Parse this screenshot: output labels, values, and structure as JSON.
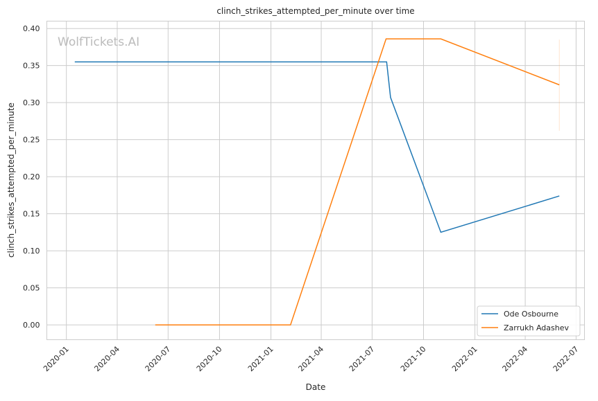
{
  "chart_data": {
    "type": "line",
    "title": "clinch_strikes_attempted_per_minute over time",
    "xlabel": "Date",
    "ylabel": "clinch_strikes_attempted_per_minute",
    "watermark": "WolfTickets.AI",
    "xlim": [
      "2019-11-27",
      "2022-07-16"
    ],
    "ylim": [
      -0.02,
      0.41
    ],
    "x_ticks": [
      "2020-01",
      "2020-04",
      "2020-07",
      "2020-10",
      "2021-01",
      "2021-04",
      "2021-07",
      "2021-10",
      "2022-01",
      "2022-04",
      "2022-07"
    ],
    "y_ticks": [
      "0.00",
      "0.05",
      "0.10",
      "0.15",
      "0.20",
      "0.25",
      "0.30",
      "0.35",
      "0.40"
    ],
    "grid": true,
    "legend_position": "bottom-right",
    "series": [
      {
        "name": "Ode Osbourne",
        "color": "#1f77b4",
        "points": [
          [
            "2020-01-16",
            0.355
          ],
          [
            "2021-07-27",
            0.355
          ],
          [
            "2021-08-03",
            0.307
          ],
          [
            "2021-11-01",
            0.125
          ],
          [
            "2022-06-01",
            0.174
          ]
        ]
      },
      {
        "name": "Zarrukh Adashev",
        "color": "#ff7f0e",
        "points": [
          [
            "2020-06-08",
            0.0
          ],
          [
            "2021-02-05",
            0.0
          ],
          [
            "2021-07-26",
            0.386
          ],
          [
            "2021-11-01",
            0.386
          ],
          [
            "2022-06-01",
            0.324
          ]
        ]
      }
    ],
    "faint_marker": {
      "date": "2022-06-01",
      "y_range": [
        0.262,
        0.385
      ],
      "color": "#ff7f0e"
    }
  }
}
